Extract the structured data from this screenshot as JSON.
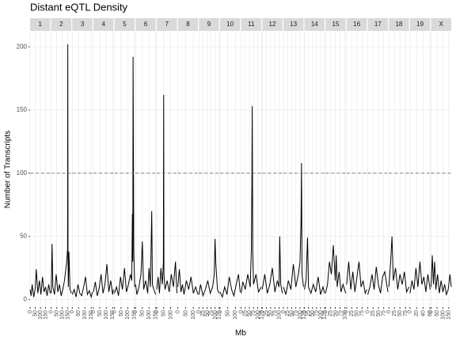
{
  "chart_data": {
    "type": "line",
    "title": "Distant eQTL Density",
    "xlabel": "Mb",
    "ylabel": "Number of Transcripts",
    "color": "#000000",
    "grid": true,
    "ylim": [
      -6,
      212
    ],
    "yticks": [
      0,
      50,
      100,
      150,
      200
    ],
    "hline": 100,
    "panels": [
      {
        "name": "1",
        "xlim": [
          0,
          195
        ],
        "xticks": [
          0,
          50,
          100,
          150
        ],
        "x": [
          0,
          10,
          20,
          35,
          50,
          60,
          75,
          90,
          105,
          120,
          135,
          150,
          165,
          180,
          195
        ],
        "values": [
          8,
          3,
          12,
          2,
          9,
          24,
          5,
          15,
          4,
          18,
          6,
          10,
          3,
          12,
          5
        ]
      },
      {
        "name": "2",
        "xlim": [
          0,
          182
        ],
        "xticks": [
          0,
          50,
          100,
          150
        ],
        "x": [
          0,
          8,
          15,
          30,
          45,
          60,
          75,
          90,
          105,
          120,
          140,
          148,
          150,
          152,
          155,
          160,
          170,
          182
        ],
        "values": [
          5,
          44,
          10,
          4,
          20,
          6,
          12,
          3,
          8,
          15,
          30,
          40,
          202,
          35,
          10,
          38,
          8,
          5
        ]
      },
      {
        "name": "3",
        "xlim": [
          0,
          160
        ],
        "xticks": [
          0,
          50,
          100,
          150
        ],
        "x": [
          0,
          15,
          30,
          45,
          60,
          75,
          90,
          105,
          120,
          135,
          150,
          160
        ],
        "values": [
          4,
          8,
          2,
          12,
          5,
          3,
          10,
          18,
          4,
          7,
          2,
          6
        ]
      },
      {
        "name": "4",
        "xlim": [
          0,
          157
        ],
        "xticks": [
          0,
          50,
          100,
          150
        ],
        "x": [
          0,
          15,
          30,
          45,
          60,
          75,
          90,
          105,
          120,
          135,
          150,
          157
        ],
        "values": [
          6,
          14,
          3,
          9,
          20,
          5,
          12,
          28,
          6,
          15,
          4,
          8
        ]
      },
      {
        "name": "5",
        "xlim": [
          0,
          152
        ],
        "xticks": [
          0,
          50,
          100,
          150
        ],
        "x": [
          0,
          15,
          30,
          45,
          60,
          75,
          90,
          105,
          120,
          130,
          135,
          138,
          140,
          145,
          152
        ],
        "values": [
          5,
          10,
          3,
          18,
          8,
          25,
          6,
          12,
          20,
          15,
          68,
          30,
          192,
          40,
          10
        ]
      },
      {
        "name": "6",
        "xlim": [
          0,
          150
        ],
        "xticks": [
          0,
          50,
          100,
          150
        ],
        "x": [
          0,
          10,
          25,
          40,
          50,
          60,
          75,
          90,
          100,
          110,
          120,
          125,
          135,
          150
        ],
        "values": [
          12,
          4,
          10,
          20,
          46,
          8,
          15,
          5,
          25,
          10,
          70,
          12,
          8,
          4
        ]
      },
      {
        "name": "7",
        "xlim": [
          0,
          145
        ],
        "xticks": [
          0,
          50,
          100
        ],
        "x": [
          0,
          10,
          20,
          30,
          40,
          48,
          50,
          52,
          60,
          75,
          90,
          105,
          120,
          135,
          145
        ],
        "values": [
          8,
          18,
          5,
          25,
          12,
          30,
          162,
          20,
          8,
          15,
          6,
          20,
          10,
          30,
          5
        ]
      },
      {
        "name": "8",
        "xlim": [
          0,
          130
        ],
        "xticks": [
          0,
          50,
          100
        ],
        "x": [
          0,
          10,
          20,
          30,
          40,
          55,
          70,
          85,
          100,
          115,
          130
        ],
        "values": [
          10,
          24,
          6,
          12,
          4,
          15,
          8,
          18,
          5,
          10,
          4
        ]
      },
      {
        "name": "9",
        "xlim": [
          0,
          125
        ],
        "xticks": [
          0,
          25,
          50,
          75,
          100,
          125
        ],
        "x": [
          0,
          10,
          25,
          40,
          55,
          70,
          85,
          95,
          100,
          105,
          115,
          125
        ],
        "values": [
          4,
          12,
          3,
          8,
          15,
          5,
          10,
          20,
          48,
          28,
          8,
          5
        ]
      },
      {
        "name": "10",
        "xlim": [
          0,
          131
        ],
        "xticks": [
          0,
          50,
          100
        ],
        "x": [
          0,
          15,
          30,
          45,
          60,
          75,
          90,
          105,
          120,
          131
        ],
        "values": [
          6,
          2,
          10,
          4,
          18,
          8,
          3,
          12,
          20,
          6
        ]
      },
      {
        "name": "11",
        "xlim": [
          0,
          122
        ],
        "xticks": [
          0,
          25,
          50,
          75,
          100,
          125
        ],
        "x": [
          0,
          10,
          25,
          40,
          55,
          62,
          65,
          67,
          70,
          75,
          90,
          105,
          122
        ],
        "values": [
          5,
          14,
          8,
          20,
          10,
          40,
          90,
          153,
          38,
          12,
          20,
          6,
          10
        ]
      },
      {
        "name": "12",
        "xlim": [
          0,
          120
        ],
        "xticks": [
          0,
          25,
          50,
          75,
          100
        ],
        "x": [
          0,
          15,
          30,
          45,
          60,
          75,
          90,
          100,
          104,
          110,
          120
        ],
        "values": [
          8,
          20,
          5,
          12,
          25,
          6,
          15,
          10,
          50,
          12,
          5
        ]
      },
      {
        "name": "13",
        "xlim": [
          0,
          121
        ],
        "xticks": [
          0,
          25,
          50,
          75,
          100,
          125
        ],
        "x": [
          0,
          15,
          30,
          45,
          60,
          75,
          90,
          100,
          106,
          109,
          112,
          121
        ],
        "values": [
          10,
          4,
          15,
          8,
          28,
          10,
          20,
          30,
          60,
          108,
          20,
          10
        ]
      },
      {
        "name": "14",
        "xlim": [
          0,
          125
        ],
        "xticks": [
          0,
          25,
          50,
          75,
          100,
          125
        ],
        "x": [
          0,
          10,
          19,
          25,
          40,
          55,
          70,
          85,
          100,
          115,
          125
        ],
        "values": [
          8,
          15,
          49,
          10,
          5,
          12,
          6,
          18,
          4,
          10,
          5
        ]
      },
      {
        "name": "15",
        "xlim": [
          0,
          104
        ],
        "xticks": [
          0,
          25,
          50,
          75,
          100
        ],
        "x": [
          0,
          10,
          20,
          30,
          40,
          50,
          55,
          60,
          70,
          80,
          90,
          104
        ],
        "values": [
          5,
          12,
          30,
          20,
          43,
          15,
          35,
          10,
          22,
          6,
          12,
          5
        ]
      },
      {
        "name": "16",
        "xlim": [
          0,
          98
        ],
        "xticks": [
          0,
          25,
          50,
          75
        ],
        "x": [
          0,
          10,
          20,
          30,
          40,
          50,
          60,
          70,
          80,
          90,
          98
        ],
        "values": [
          12,
          30,
          8,
          22,
          6,
          18,
          30,
          10,
          15,
          5,
          8
        ]
      },
      {
        "name": "17",
        "xlim": [
          0,
          95
        ],
        "xticks": [
          0,
          25,
          50,
          75
        ],
        "x": [
          0,
          10,
          20,
          30,
          40,
          50,
          60,
          70,
          80,
          95
        ],
        "values": [
          4,
          10,
          20,
          8,
          26,
          12,
          5,
          18,
          22,
          6
        ]
      },
      {
        "name": "18",
        "xlim": [
          0,
          91
        ],
        "xticks": [
          0,
          25,
          50,
          75
        ],
        "x": [
          0,
          8,
          14,
          20,
          30,
          40,
          50,
          60,
          70,
          80,
          91
        ],
        "values": [
          10,
          30,
          50,
          15,
          25,
          8,
          20,
          12,
          22,
          6,
          10
        ]
      },
      {
        "name": "19",
        "xlim": [
          0,
          61
        ],
        "xticks": [
          0,
          20,
          40,
          60
        ],
        "x": [
          0,
          6,
          12,
          18,
          24,
          30,
          36,
          42,
          48,
          54,
          61
        ],
        "values": [
          5,
          15,
          8,
          25,
          10,
          30,
          12,
          18,
          6,
          20,
          8
        ]
      },
      {
        "name": "X",
        "xlim": [
          0,
          171
        ],
        "xticks": [
          0,
          50,
          100,
          150
        ],
        "x": [
          0,
          10,
          20,
          30,
          40,
          55,
          70,
          85,
          100,
          115,
          130,
          145,
          160,
          171
        ],
        "values": [
          10,
          35,
          12,
          30,
          8,
          20,
          5,
          15,
          6,
          12,
          4,
          8,
          20,
          10
        ]
      }
    ]
  }
}
